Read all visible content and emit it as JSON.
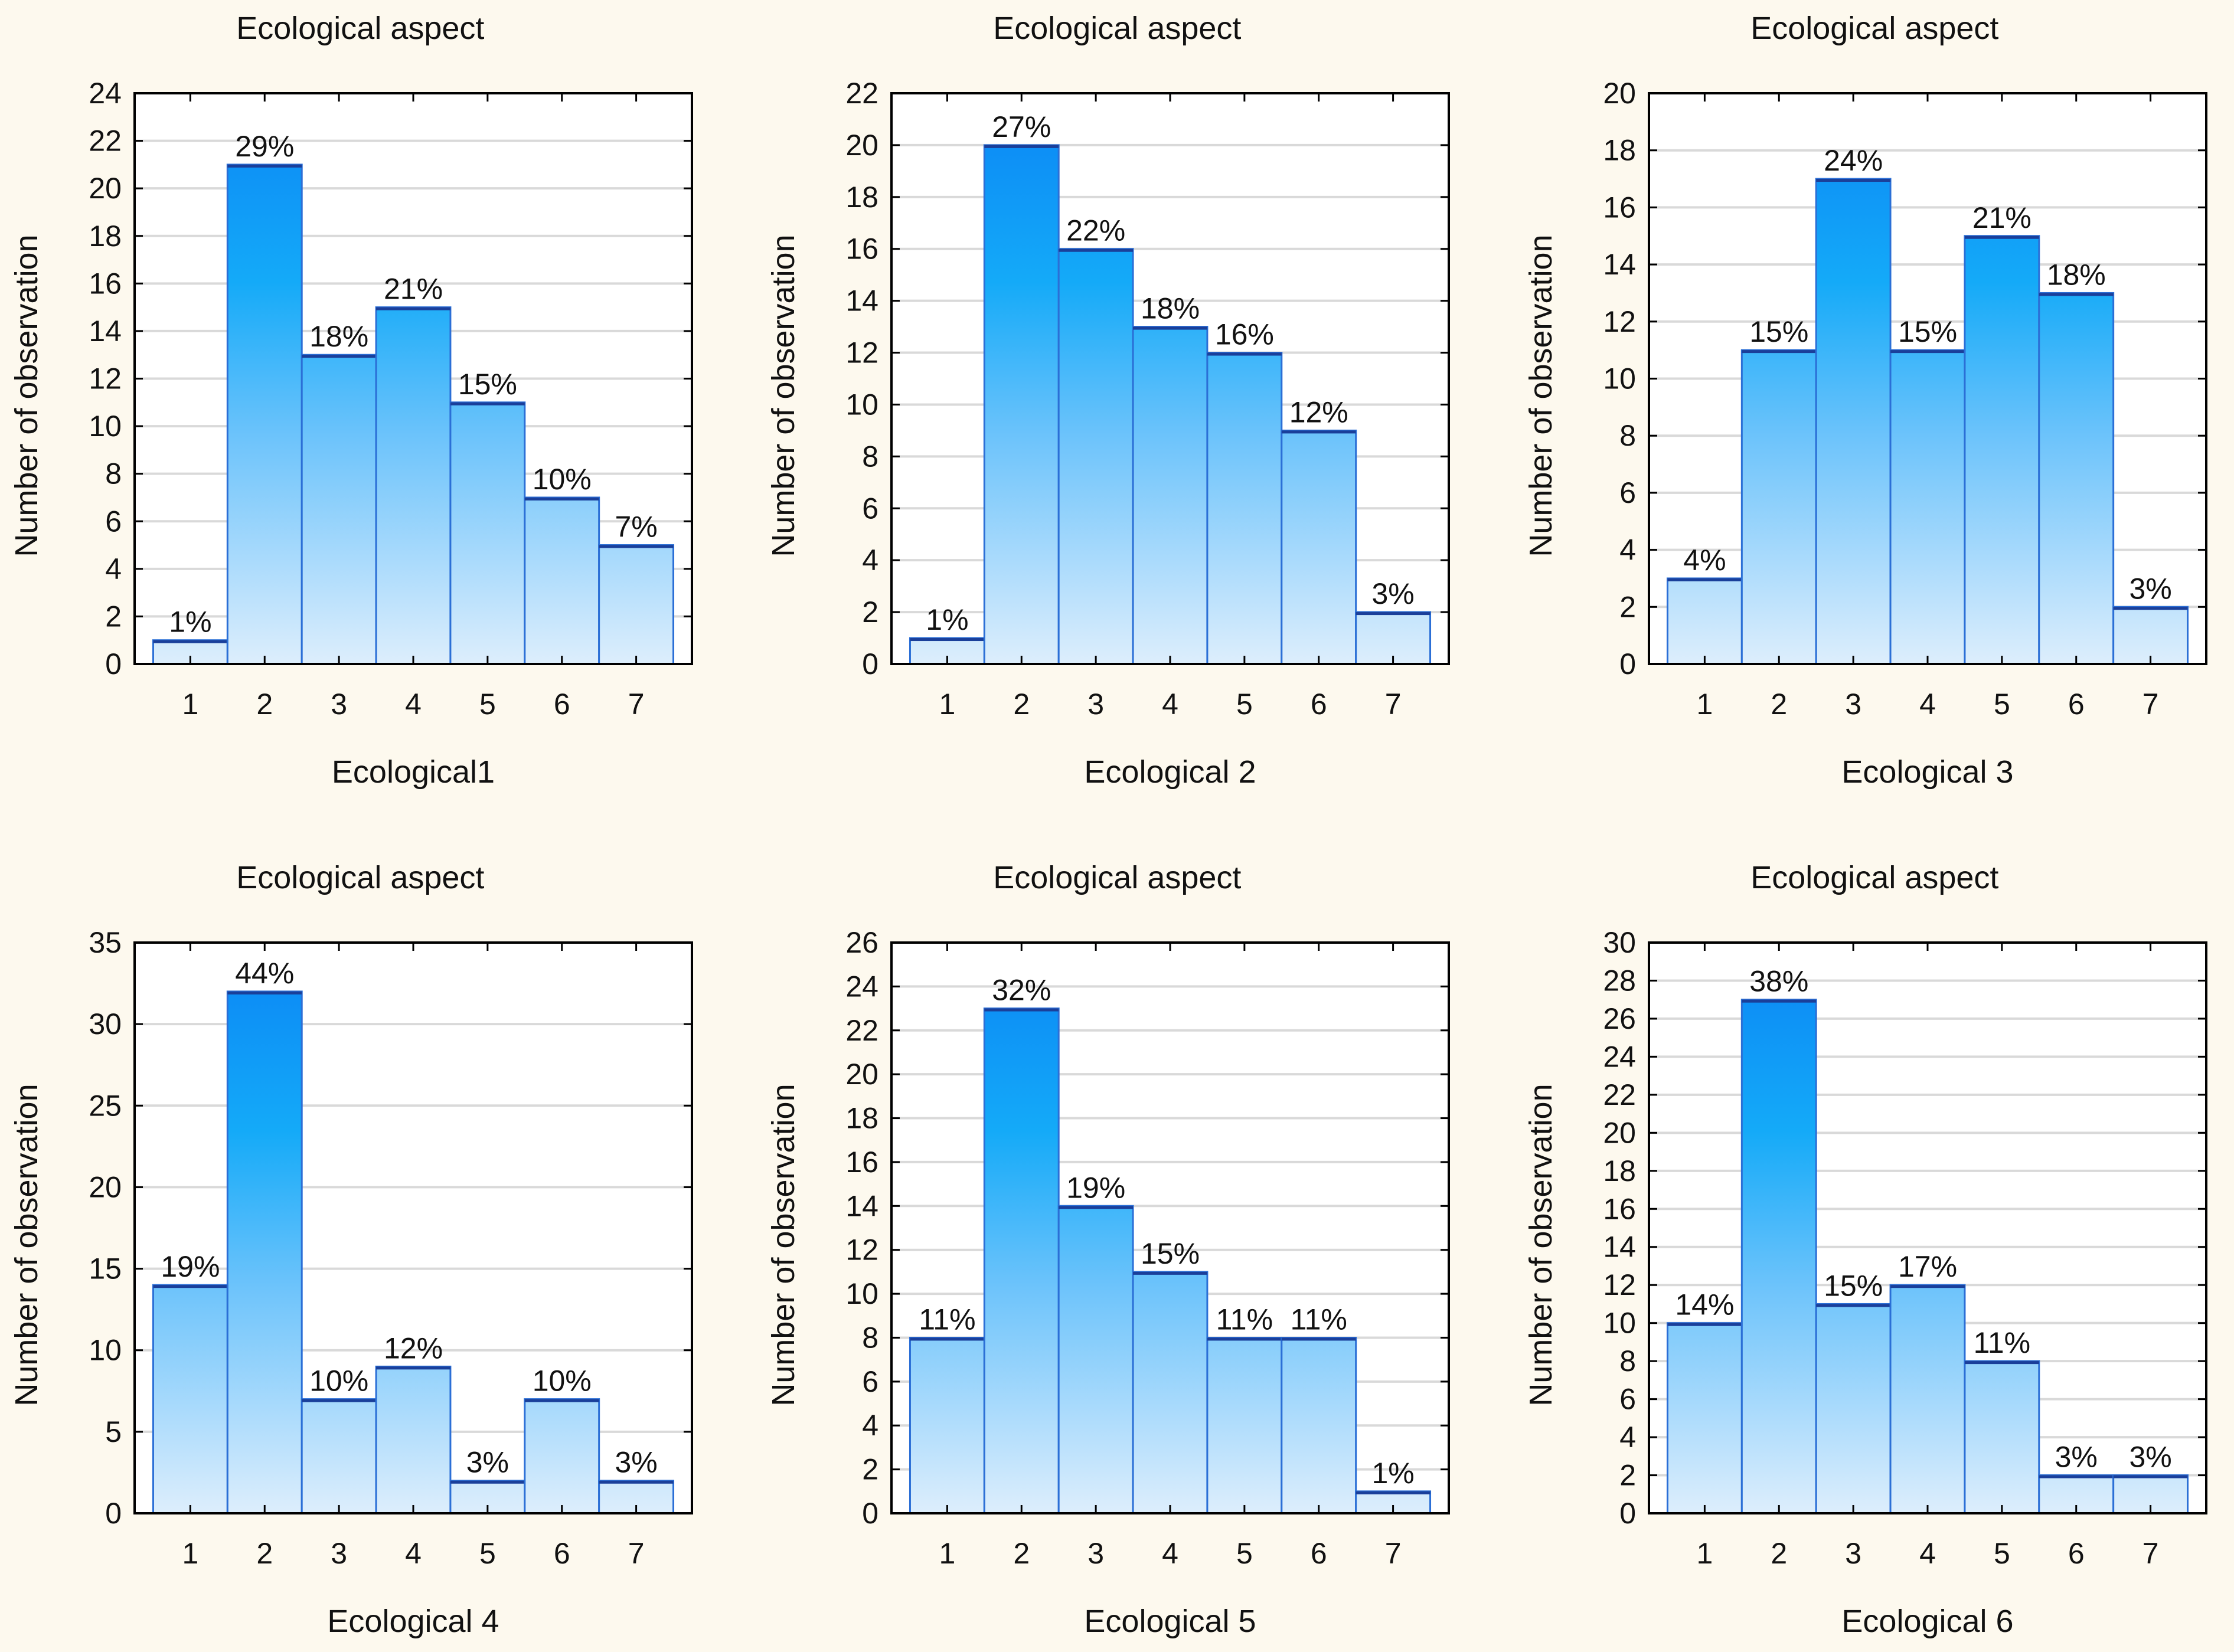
{
  "figure": {
    "background": "#fdf9ee",
    "bar_top_color": "#0a84f5",
    "bar_mid_color": "#14aaf8",
    "bar_bottom_color": "#ddeefc",
    "bar_edge_color": "#2b6fd6"
  },
  "chart_data": [
    {
      "type": "bar",
      "title": "Ecological aspect",
      "xlabel": "Ecological1",
      "ylabel": "Number of observation",
      "categories": [
        "1",
        "2",
        "3",
        "4",
        "5",
        "6",
        "7"
      ],
      "values": [
        1,
        21,
        13,
        15,
        11,
        7,
        5
      ],
      "data_labels": [
        "1%",
        "29%",
        "18%",
        "21%",
        "15%",
        "10%",
        "7%"
      ],
      "ylim": [
        0,
        24
      ],
      "yticks": [
        0,
        2,
        4,
        6,
        8,
        10,
        12,
        14,
        16,
        18,
        20,
        22,
        24
      ],
      "grid": true
    },
    {
      "type": "bar",
      "title": "Ecological aspect",
      "xlabel": "Ecological 2",
      "ylabel": "Number of observation",
      "categories": [
        "1",
        "2",
        "3",
        "4",
        "5",
        "6",
        "7"
      ],
      "values": [
        1,
        20,
        16,
        13,
        12,
        9,
        2
      ],
      "data_labels": [
        "1%",
        "27%",
        "22%",
        "18%",
        "16%",
        "12%",
        "3%"
      ],
      "ylim": [
        0,
        22
      ],
      "yticks": [
        0,
        2,
        4,
        6,
        8,
        10,
        12,
        14,
        16,
        18,
        20,
        22
      ],
      "grid": true
    },
    {
      "type": "bar",
      "title": "Ecological aspect",
      "xlabel": "Ecological 3",
      "ylabel": "Number of observation",
      "categories": [
        "1",
        "2",
        "3",
        "4",
        "5",
        "6",
        "7"
      ],
      "values": [
        3,
        11,
        17,
        11,
        15,
        13,
        2
      ],
      "data_labels": [
        "4%",
        "15%",
        "24%",
        "15%",
        "21%",
        "18%",
        "3%"
      ],
      "ylim": [
        0,
        20
      ],
      "yticks": [
        0,
        2,
        4,
        6,
        8,
        10,
        12,
        14,
        16,
        18,
        20
      ],
      "grid": true
    },
    {
      "type": "bar",
      "title": "Ecological aspect",
      "xlabel": "Ecological 4",
      "ylabel": "Number of observation",
      "categories": [
        "1",
        "2",
        "3",
        "4",
        "5",
        "6",
        "7"
      ],
      "values": [
        14,
        32,
        7,
        9,
        2,
        7,
        2
      ],
      "data_labels": [
        "19%",
        "44%",
        "10%",
        "12%",
        "3%",
        "10%",
        "3%"
      ],
      "ylim": [
        0,
        35
      ],
      "yticks": [
        0,
        5,
        10,
        15,
        20,
        25,
        30,
        35
      ],
      "grid": true
    },
    {
      "type": "bar",
      "title": "Ecological aspect",
      "xlabel": "Ecological 5",
      "ylabel": "Number of observation",
      "categories": [
        "1",
        "2",
        "3",
        "4",
        "5",
        "6",
        "7"
      ],
      "values": [
        8,
        23,
        14,
        11,
        8,
        8,
        1
      ],
      "data_labels": [
        "11%",
        "32%",
        "19%",
        "15%",
        "11%",
        "11%",
        "1%"
      ],
      "ylim": [
        0,
        26
      ],
      "yticks": [
        0,
        2,
        4,
        6,
        8,
        10,
        12,
        14,
        16,
        18,
        20,
        22,
        24,
        26
      ],
      "grid": true
    },
    {
      "type": "bar",
      "title": "Ecological aspect",
      "xlabel": "Ecological 6",
      "ylabel": "Number of observation",
      "categories": [
        "1",
        "2",
        "3",
        "4",
        "5",
        "6",
        "7"
      ],
      "values": [
        10,
        27,
        11,
        12,
        8,
        2,
        2
      ],
      "data_labels": [
        "14%",
        "38%",
        "15%",
        "17%",
        "11%",
        "3%",
        "3%"
      ],
      "ylim": [
        0,
        30
      ],
      "yticks": [
        0,
        2,
        4,
        6,
        8,
        10,
        12,
        14,
        16,
        18,
        20,
        22,
        24,
        26,
        28,
        30
      ],
      "grid": true
    }
  ]
}
